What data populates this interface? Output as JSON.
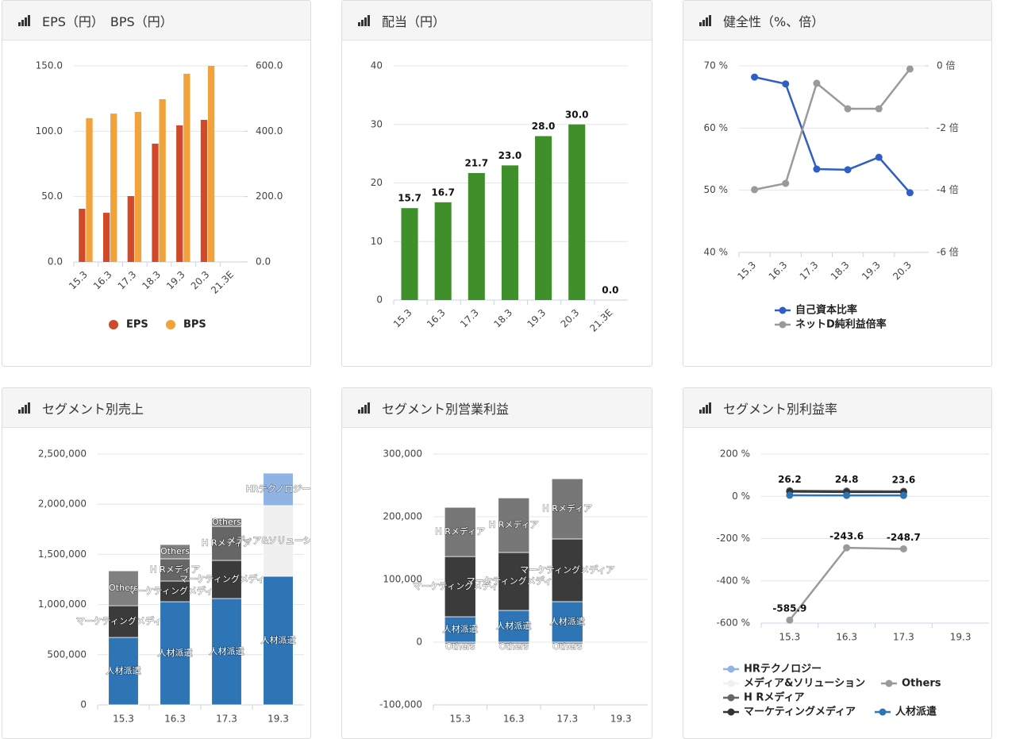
{
  "chart_data": [
    {
      "type": "bar",
      "title": "EPS（円）　BPS（円）",
      "categories": [
        "15.3",
        "16.3",
        "17.3",
        "18.3",
        "19.3",
        "20.3",
        "21.3E"
      ],
      "series": [
        {
          "name": "EPS",
          "color": "#d04a2a",
          "values": [
            40.7,
            37.6,
            50.4,
            90.5,
            104.5,
            108.7,
            null
          ]
        },
        {
          "name": "BPS",
          "color": "#f2a23a",
          "axis": "y2",
          "values": [
            440,
            454,
            459,
            498,
            576,
            600,
            null
          ]
        }
      ],
      "ylim": [
        0,
        150
      ],
      "yticks": [
        {
          "value": 0,
          "label": "0.0"
        },
        {
          "value": 50,
          "label": "50.0"
        },
        {
          "value": 100,
          "label": "100.0"
        },
        {
          "value": 150,
          "label": "150.0"
        }
      ],
      "y2lim": [
        0,
        600
      ],
      "y2ticks": [
        {
          "value": 0,
          "label": "0.0"
        },
        {
          "value": 200,
          "label": "200.0"
        },
        {
          "value": 400,
          "label": "400.0"
        },
        {
          "value": 600,
          "label": "600.0"
        }
      ],
      "grid": true,
      "legend": "bottom"
    },
    {
      "type": "bar",
      "title": "配当（円）",
      "categories": [
        "15.3",
        "16.3",
        "17.3",
        "18.3",
        "19.3",
        "20.3",
        "21.3E"
      ],
      "values": [
        15.7,
        16.7,
        21.7,
        23,
        28,
        30,
        0
      ],
      "value_labels": [
        "15.7",
        "16.7",
        "21.7",
        "23.0",
        "28.0",
        "30.0",
        "0.0"
      ],
      "color": "#3f8f2a",
      "ylim": [
        0,
        40
      ],
      "yticks": [
        0,
        10,
        20,
        30,
        40
      ],
      "grid": true
    },
    {
      "type": "line",
      "title": "健全性（%、倍）",
      "categories": [
        "15.3",
        "16.3",
        "17.3",
        "18.3",
        "19.3",
        "20.3"
      ],
      "series": [
        {
          "name": "自己資本比率",
          "color": "#2f5fc4",
          "values": [
            68.2,
            67.1,
            53.4,
            53.3,
            55.3,
            49.6
          ]
        },
        {
          "name": "ネットD純利益倍率",
          "color": "#9a9a9a",
          "axis": "y2",
          "values": [
            -3.98,
            -3.78,
            -0.56,
            -1.38,
            -1.38,
            -0.1
          ]
        }
      ],
      "ylim": [
        40,
        70
      ],
      "yticks": [
        {
          "value": 40,
          "label": "40 %"
        },
        {
          "value": 50,
          "label": "50 %"
        },
        {
          "value": 60,
          "label": "60 %"
        },
        {
          "value": 70,
          "label": "70 %"
        }
      ],
      "y2lim": [
        -6,
        0
      ],
      "y2ticks": [
        {
          "value": -6,
          "label": "-6 倍"
        },
        {
          "value": -4,
          "label": "-4 倍"
        },
        {
          "value": -2,
          "label": "-2 倍"
        },
        {
          "value": 0,
          "label": "0 倍"
        }
      ],
      "grid": true,
      "legend": "bottom"
    },
    {
      "type": "stacked_bar",
      "title": "セグメント別売上",
      "categories": [
        "15.3",
        "16.3",
        "17.3",
        "19.3"
      ],
      "series": [
        {
          "name": "人材派遣",
          "color": "#2e75b6",
          "values": [
            672000,
            1028000,
            1060000,
            1282000
          ]
        },
        {
          "name": "マーケティングメディア",
          "color": "#3b3b3b",
          "values": [
            316000,
            206000,
            380000,
            null
          ]
        },
        {
          "name": "H Rメディア",
          "color": "#666666",
          "values": [
            null,
            222000,
            340000,
            null
          ]
        },
        {
          "name": "Others",
          "color": "#808080",
          "values": [
            348000,
            142000,
            79000,
            null
          ]
        },
        {
          "name": "メディア&ソリューション",
          "color": "#f0f0f0",
          "values": [
            null,
            null,
            null,
            704000
          ]
        },
        {
          "name": "HRテクノロジー",
          "color": "#8fb4e3",
          "values": [
            null,
            null,
            null,
            324000
          ]
        }
      ],
      "ylim": [
        0,
        2500000
      ],
      "yticks": [
        0,
        {
          "value": 500000,
          "label": "500,000"
        },
        {
          "value": 1000000,
          "label": "1,000,000"
        },
        {
          "value": 1500000,
          "label": "1,500,000"
        },
        {
          "value": 2000000,
          "label": "2,000,000"
        },
        {
          "value": 2500000,
          "label": "2,500,000"
        }
      ],
      "grid": true
    },
    {
      "type": "stacked_bar",
      "title": "セグメント別営業利益",
      "categories": [
        "15.3",
        "16.3",
        "17.3",
        "19.3"
      ],
      "series": [
        {
          "name": "人材派遣",
          "color": "#2e75b6",
          "values": [
            40500,
            50600,
            64600,
            null
          ]
        },
        {
          "name": "マーケティングメディア",
          "color": "#3b3b3b",
          "values": [
            96000,
            92400,
            100000,
            null
          ]
        },
        {
          "name": "H Rメディア",
          "color": "#777777",
          "values": [
            78500,
            87000,
            96000,
            null
          ]
        },
        {
          "name": "Others",
          "color": "#9a9a9a",
          "values": [
            -3000,
            -3000,
            -3000,
            null
          ]
        }
      ],
      "ylim": [
        -100000,
        300000
      ],
      "yticks": [
        {
          "value": -100000,
          "label": "-100,000"
        },
        0,
        {
          "value": 100000,
          "label": "100,000"
        },
        {
          "value": 200000,
          "label": "200,000"
        },
        {
          "value": 300000,
          "label": "300,000"
        }
      ],
      "grid": true
    },
    {
      "type": "line",
      "title": "セグメント別利益率",
      "categories": [
        "15.3",
        "16.3",
        "17.3",
        "19.3"
      ],
      "series": [
        {
          "name": "HRテクノロジー",
          "color": "#8fb4e3",
          "values": [
            null,
            null,
            null,
            null
          ]
        },
        {
          "name": "メディア&ソリューション",
          "color": "#f0f0f0",
          "values": [
            null,
            null,
            null,
            null
          ]
        },
        {
          "name": "Others",
          "color": "#9a9a9a",
          "data_labels": true,
          "values": [
            -585.9,
            -243.6,
            -248.7,
            null
          ]
        },
        {
          "name": "H Rメディア",
          "color": "#666666",
          "data_labels": true,
          "values": [
            26.2,
            24.8,
            23.6,
            null
          ]
        },
        {
          "name": "マーケティングメディア",
          "color": "#333333",
          "values": [
            22,
            20,
            20,
            null
          ]
        },
        {
          "name": "人材派遣",
          "color": "#2e75b6",
          "values": [
            5,
            4,
            4,
            null
          ]
        }
      ],
      "ylim": [
        -600,
        200
      ],
      "yticks": [
        {
          "value": -600,
          "label": "-600 %"
        },
        {
          "value": -400,
          "label": "-400 %"
        },
        {
          "value": -200,
          "label": "-200 %"
        },
        {
          "value": 0,
          "label": "0 %"
        },
        {
          "value": 200,
          "label": "200 %"
        }
      ],
      "grid": true,
      "legend": "bottom"
    }
  ]
}
